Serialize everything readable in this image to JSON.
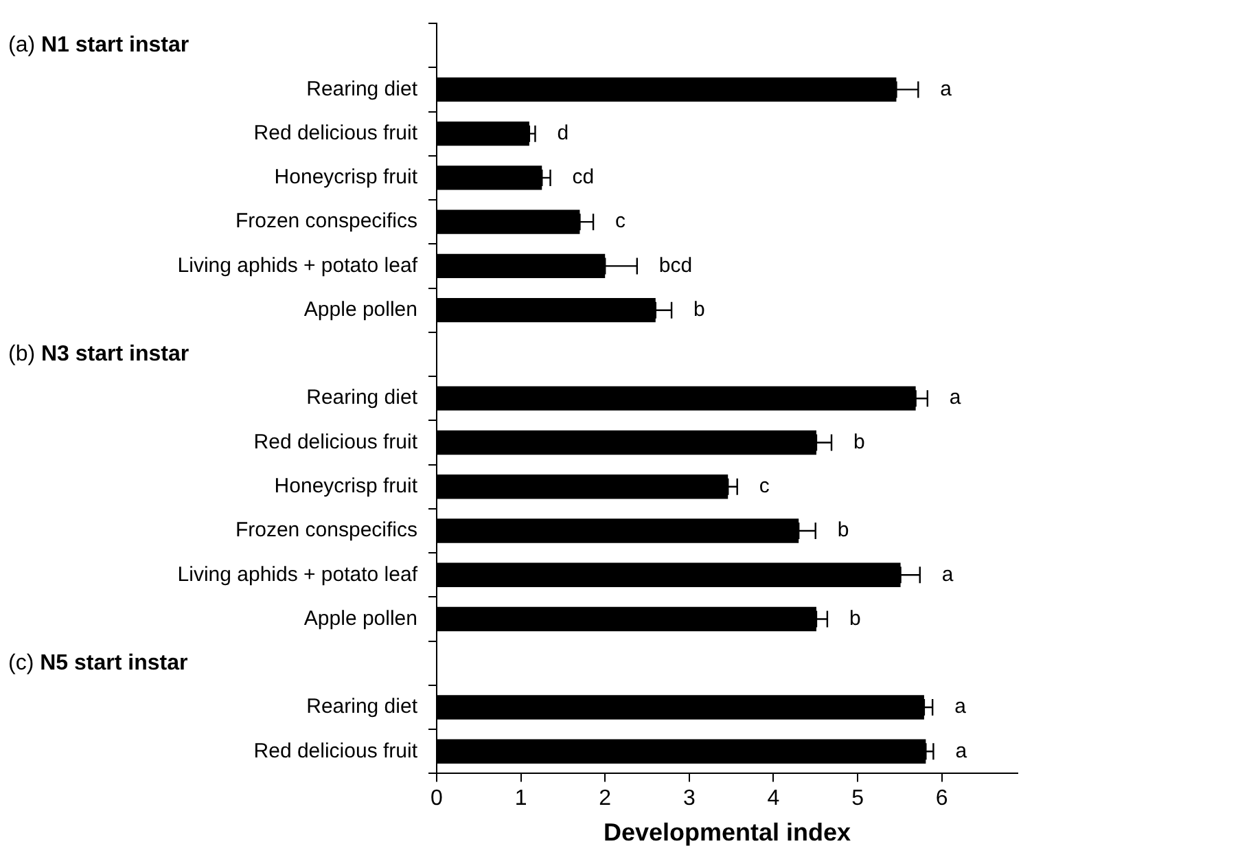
{
  "chart_data": {
    "type": "bar",
    "orientation": "horizontal",
    "xlabel": "Developmental index",
    "categories": [
      null,
      "Rearing diet",
      "Red delicious fruit",
      "Honeycrisp fruit",
      "Frozen conspecifics",
      "Living aphids + potato leaf",
      "Apple pollen",
      null,
      "Rearing diet",
      "Red delicious fruit",
      "Honeycrisp fruit",
      "Frozen conspecifics",
      "Living aphids + potato leaf",
      "Apple pollen",
      null,
      "Rearing diet",
      "Red delicious fruit"
    ],
    "annotations": [
      "(a) N1 start instar",
      "(b) N3 start instar",
      "(c) N5 start instar"
    ],
    "values": [
      null,
      5.46,
      1.1,
      1.25,
      1.7,
      2.0,
      2.6,
      null,
      5.69,
      4.51,
      3.46,
      4.3,
      5.51,
      4.51,
      null,
      5.79,
      5.81
    ],
    "color": "#000000",
    "errors": [
      null,
      [
        5.46,
        5.72
      ],
      [
        1.1,
        1.17
      ],
      [
        1.25,
        1.35
      ],
      [
        1.7,
        1.86
      ],
      [
        2.0,
        2.38
      ],
      [
        2.6,
        2.79
      ],
      null,
      [
        5.69,
        5.83
      ],
      [
        4.51,
        4.69
      ],
      [
        3.46,
        3.57
      ],
      [
        4.3,
        4.5
      ],
      [
        5.51,
        5.74
      ],
      [
        4.51,
        4.64
      ],
      null,
      [
        5.79,
        5.89
      ],
      [
        5.81,
        5.9
      ]
    ],
    "value_labels": [
      null,
      "a",
      "d",
      "cd",
      "c",
      "bcd",
      "b",
      null,
      "a",
      "b",
      "c",
      "b",
      "a",
      "b",
      null,
      "a",
      "a"
    ],
    "xlim": [
      0,
      6.9
    ],
    "xticks": [
      0,
      1,
      2,
      3,
      4,
      5,
      6
    ]
  }
}
